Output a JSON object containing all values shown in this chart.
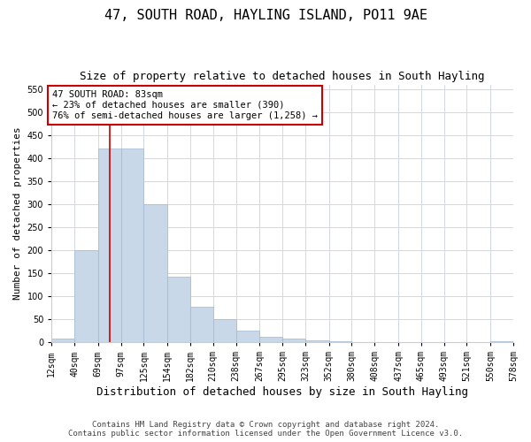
{
  "title": "47, SOUTH ROAD, HAYLING ISLAND, PO11 9AE",
  "subtitle": "Size of property relative to detached houses in South Hayling",
  "xlabel": "Distribution of detached houses by size in South Hayling",
  "ylabel": "Number of detached properties",
  "footer1": "Contains HM Land Registry data © Crown copyright and database right 2024.",
  "footer2": "Contains public sector information licensed under the Open Government Licence v3.0.",
  "bins": [
    12,
    40,
    69,
    97,
    125,
    154,
    182,
    210,
    238,
    267,
    295,
    323,
    352,
    380,
    408,
    437,
    465,
    493,
    521,
    550,
    578
  ],
  "bin_labels": [
    "12sqm",
    "40sqm",
    "69sqm",
    "97sqm",
    "125sqm",
    "154sqm",
    "182sqm",
    "210sqm",
    "238sqm",
    "267sqm",
    "295sqm",
    "323sqm",
    "352sqm",
    "380sqm",
    "408sqm",
    "437sqm",
    "465sqm",
    "493sqm",
    "521sqm",
    "550sqm",
    "578sqm"
  ],
  "counts": [
    8,
    200,
    420,
    420,
    300,
    143,
    77,
    50,
    25,
    12,
    8,
    5,
    2,
    0,
    0,
    0,
    0,
    0,
    0,
    2
  ],
  "bar_color": "#c8d8e8",
  "bar_edge_color": "#a0b8d0",
  "redline_x": 83,
  "annotation_line1": "47 SOUTH ROAD: 83sqm",
  "annotation_line2": "← 23% of detached houses are smaller (390)",
  "annotation_line3": "76% of semi-detached houses are larger (1,258) →",
  "annotation_box_color": "#ffffff",
  "annotation_border_color": "#cc0000",
  "ylim": [
    0,
    560
  ],
  "yticks": [
    0,
    50,
    100,
    150,
    200,
    250,
    300,
    350,
    400,
    450,
    500,
    550
  ],
  "grid_color": "#d0d8e8",
  "title_fontsize": 11,
  "subtitle_fontsize": 9,
  "xlabel_fontsize": 9,
  "ylabel_fontsize": 8,
  "tick_fontsize": 7,
  "annotation_fontsize": 7.5,
  "footer_fontsize": 6.5
}
